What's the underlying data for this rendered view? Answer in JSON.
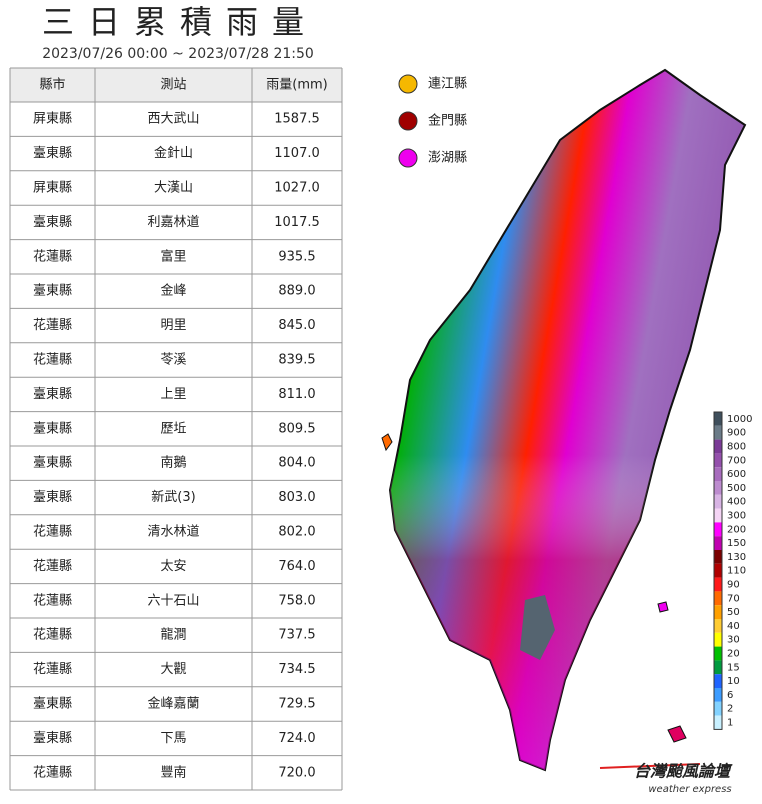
{
  "header": {
    "title": "三日累積雨量",
    "subtitle": "2023/07/26 00:00 ~ 2023/07/28 21:50"
  },
  "table": {
    "columns": [
      "縣市",
      "測站",
      "雨量(mm)"
    ],
    "rows": [
      [
        "屏東縣",
        "西大武山",
        "1587.5"
      ],
      [
        "臺東縣",
        "金針山",
        "1107.0"
      ],
      [
        "屏東縣",
        "大漢山",
        "1027.0"
      ],
      [
        "臺東縣",
        "利嘉林道",
        "1017.5"
      ],
      [
        "花蓮縣",
        "富里",
        "935.5"
      ],
      [
        "臺東縣",
        "金峰",
        "889.0"
      ],
      [
        "花蓮縣",
        "明里",
        "845.0"
      ],
      [
        "花蓮縣",
        "苓溪",
        "839.5"
      ],
      [
        "臺東縣",
        "上里",
        "811.0"
      ],
      [
        "臺東縣",
        "歷坵",
        "809.5"
      ],
      [
        "臺東縣",
        "南鵝",
        "804.0"
      ],
      [
        "臺東縣",
        "新武(3)",
        "803.0"
      ],
      [
        "花蓮縣",
        "清水林道",
        "802.0"
      ],
      [
        "花蓮縣",
        "太安",
        "764.0"
      ],
      [
        "花蓮縣",
        "六十石山",
        "758.0"
      ],
      [
        "花蓮縣",
        "龍澗",
        "737.5"
      ],
      [
        "花蓮縣",
        "大觀",
        "734.5"
      ],
      [
        "臺東縣",
        "金峰嘉蘭",
        "729.5"
      ],
      [
        "臺東縣",
        "下馬",
        "724.0"
      ],
      [
        "花蓮縣",
        "豐南",
        "720.0"
      ]
    ]
  },
  "islands": [
    {
      "label": "連江縣",
      "color": "#f5b800"
    },
    {
      "label": "金門縣",
      "color": "#a00000"
    },
    {
      "label": "澎湖縣",
      "color": "#ee00ee"
    }
  ],
  "scale": [
    {
      "label": "1000",
      "color": "#3f4f5c"
    },
    {
      "label": "900",
      "color": "#6b7b88"
    },
    {
      "label": "800",
      "color": "#7a3a96"
    },
    {
      "label": "700",
      "color": "#9450ac"
    },
    {
      "label": "600",
      "color": "#a86cbe"
    },
    {
      "label": "500",
      "color": "#bd8ccf"
    },
    {
      "label": "400",
      "color": "#d8b4e4"
    },
    {
      "label": "300",
      "color": "#f4d4f4"
    },
    {
      "label": "200",
      "color": "#ff00ff"
    },
    {
      "label": "150",
      "color": "#c000b0"
    },
    {
      "label": "130",
      "color": "#7a0000"
    },
    {
      "label": "110",
      "color": "#b00000"
    },
    {
      "label": "90",
      "color": "#ff1a1a"
    },
    {
      "label": "70",
      "color": "#ff6a00"
    },
    {
      "label": "50",
      "color": "#ffa000"
    },
    {
      "label": "40",
      "color": "#ffcc33"
    },
    {
      "label": "30",
      "color": "#ffff00"
    },
    {
      "label": "20",
      "color": "#00c000"
    },
    {
      "label": "15",
      "color": "#009a40"
    },
    {
      "label": "10",
      "color": "#1e64ff"
    },
    {
      "label": "6",
      "color": "#3c9cff"
    },
    {
      "label": "2",
      "color": "#82d2ff"
    },
    {
      "label": "1",
      "color": "#c8f0ff"
    }
  ],
  "logo": {
    "name": "台灣颱風論壇",
    "tagline": "weather express"
  }
}
